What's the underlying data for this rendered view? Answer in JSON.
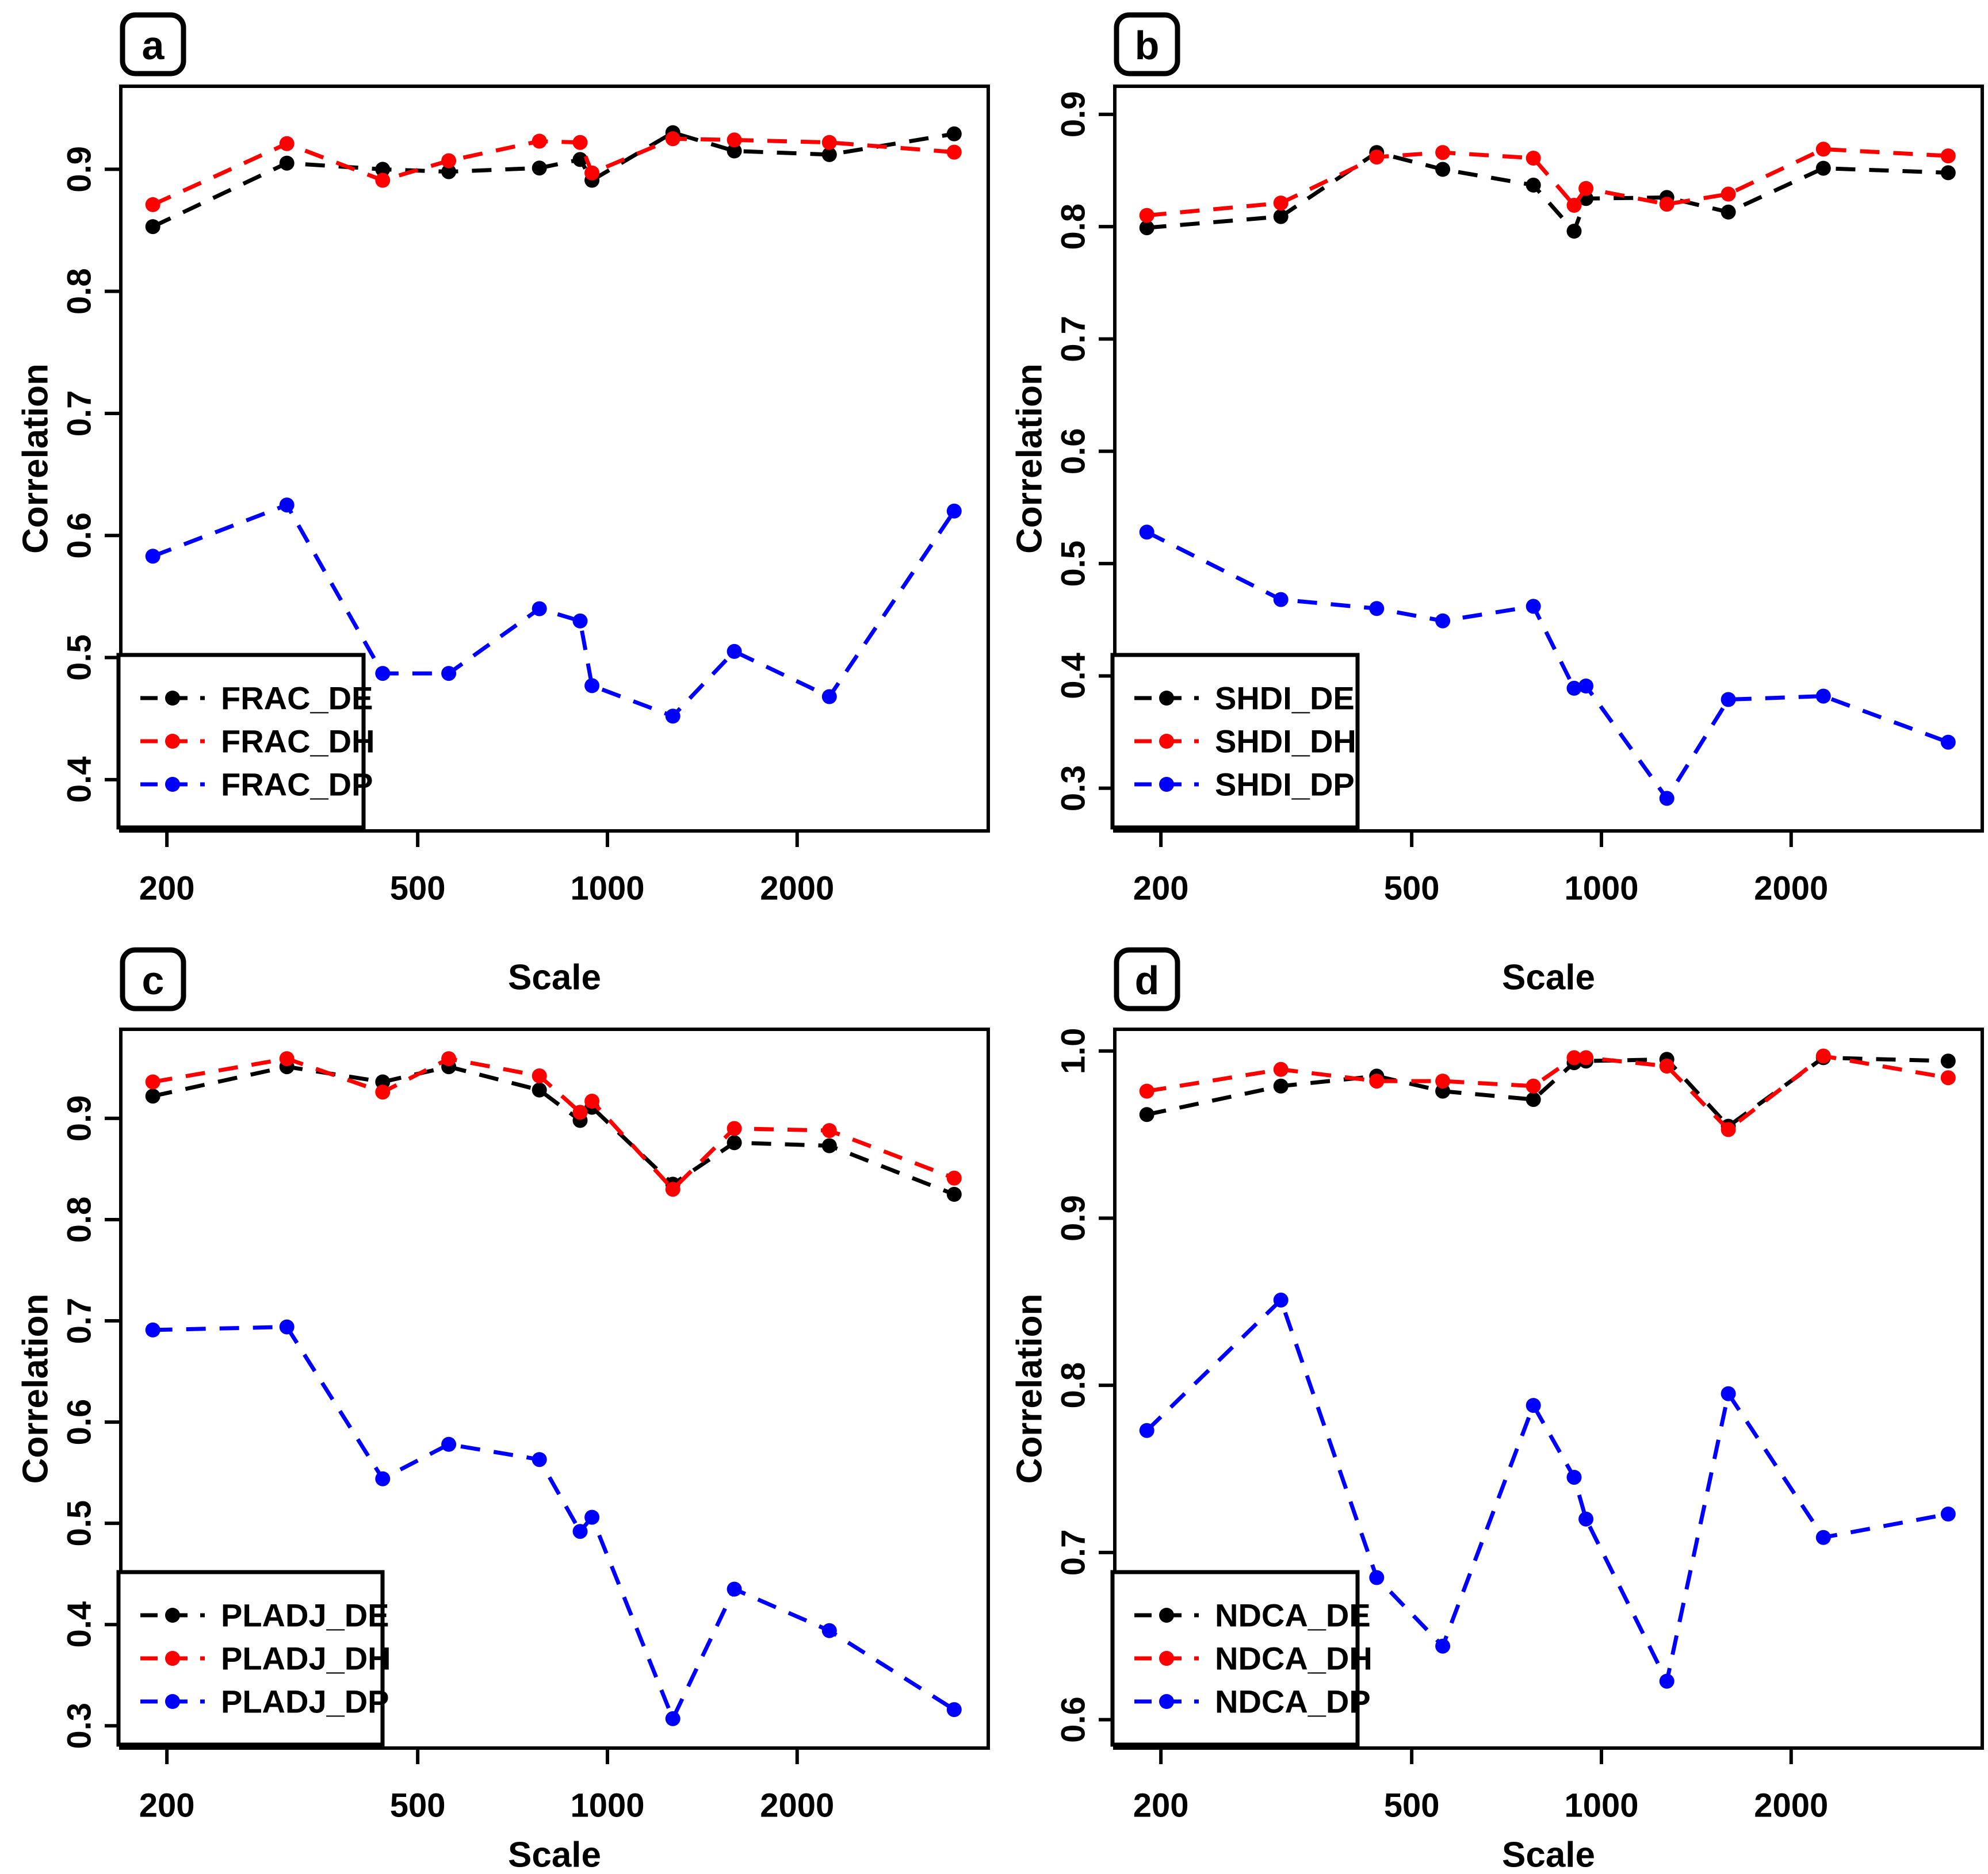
{
  "figure": {
    "background": "#FFFFFF",
    "xlabel": "Scale",
    "ylabel": "Correlation",
    "accent_colors": {
      "DE": "#000000",
      "DH": "#FF0000",
      "DP": "#0000FF"
    }
  },
  "chart_data": [
    {
      "type": "line",
      "panel_label": "a",
      "metric": "FRAC",
      "xlabel": "Scale",
      "ylabel": "Correlation",
      "xscale": "log",
      "xlim": [
        169,
        4020
      ],
      "ylim": [
        0.358,
        0.968
      ],
      "xticks": [
        200,
        500,
        1000,
        2000
      ],
      "yticks": [
        0.4,
        0.5,
        0.6,
        0.7,
        0.8,
        0.9
      ],
      "grid": false,
      "legend_position": "bottom-left",
      "line_style": "dashed",
      "marker": "filled-circle",
      "x": [
        190,
        310,
        440,
        560,
        780,
        905,
        945,
        1270,
        1590,
        2250,
        3550
      ],
      "series": [
        {
          "name": "FRAC_DE",
          "color": "#000000",
          "values": [
            0.853,
            0.905,
            0.9,
            0.898,
            0.901,
            0.908,
            0.891,
            0.93,
            0.915,
            0.912,
            0.929
          ]
        },
        {
          "name": "FRAC_DH",
          "color": "#FF0000",
          "values": [
            0.871,
            0.921,
            0.891,
            0.907,
            0.923,
            0.922,
            0.897,
            0.925,
            0.924,
            0.922,
            0.914
          ]
        },
        {
          "name": "FRAC_DP",
          "color": "#0000FF",
          "values": [
            0.583,
            0.625,
            0.487,
            0.487,
            0.54,
            0.53,
            0.477,
            0.452,
            0.505,
            0.468,
            0.62
          ]
        }
      ]
    },
    {
      "type": "line",
      "panel_label": "b",
      "metric": "SHDI",
      "xlabel": "Scale",
      "ylabel": "Correlation",
      "xscale": "log",
      "xlim": [
        169,
        4020
      ],
      "ylim": [
        0.262,
        0.925
      ],
      "xticks": [
        200,
        500,
        1000,
        2000
      ],
      "yticks": [
        0.3,
        0.4,
        0.5,
        0.6,
        0.7,
        0.8,
        0.9
      ],
      "grid": false,
      "legend_position": "bottom-left",
      "line_style": "dashed",
      "marker": "filled-circle",
      "x": [
        190,
        310,
        440,
        560,
        780,
        905,
        945,
        1270,
        1590,
        2250,
        3550
      ],
      "series": [
        {
          "name": "SHDI_DE",
          "color": "#000000",
          "values": [
            0.799,
            0.809,
            0.866,
            0.851,
            0.837,
            0.796,
            0.825,
            0.826,
            0.813,
            0.852,
            0.848
          ]
        },
        {
          "name": "SHDI_DH",
          "color": "#FF0000",
          "values": [
            0.81,
            0.821,
            0.862,
            0.866,
            0.861,
            0.819,
            0.834,
            0.82,
            0.829,
            0.869,
            0.863
          ]
        },
        {
          "name": "SHDI_DP",
          "color": "#0000FF",
          "values": [
            0.528,
            0.468,
            0.46,
            0.449,
            0.462,
            0.389,
            0.391,
            0.291,
            0.379,
            0.382,
            0.341
          ]
        }
      ]
    },
    {
      "type": "line",
      "panel_label": "c",
      "metric": "PLADJ",
      "xlabel": "Scale",
      "ylabel": "Correlation",
      "xscale": "log",
      "xlim": [
        169,
        4020
      ],
      "ylim": [
        0.278,
        0.988
      ],
      "xticks": [
        200,
        500,
        1000,
        2000
      ],
      "yticks": [
        0.3,
        0.4,
        0.5,
        0.6,
        0.7,
        0.8,
        0.9
      ],
      "grid": false,
      "legend_position": "bottom-left",
      "line_style": "dashed",
      "marker": "filled-circle",
      "x": [
        190,
        310,
        440,
        560,
        780,
        905,
        945,
        1270,
        1590,
        2250,
        3550
      ],
      "series": [
        {
          "name": "PLADJ_DE",
          "color": "#000000",
          "values": [
            0.922,
            0.951,
            0.936,
            0.951,
            0.928,
            0.898,
            0.911,
            0.835,
            0.876,
            0.873,
            0.825
          ]
        },
        {
          "name": "PLADJ_DH",
          "color": "#FF0000",
          "values": [
            0.936,
            0.959,
            0.926,
            0.959,
            0.942,
            0.906,
            0.917,
            0.83,
            0.89,
            0.888,
            0.841
          ]
        },
        {
          "name": "PLADJ_DP",
          "color": "#0000FF",
          "values": [
            0.691,
            0.694,
            0.544,
            0.578,
            0.563,
            0.492,
            0.506,
            0.307,
            0.435,
            0.394,
            0.316
          ]
        }
      ]
    },
    {
      "type": "line",
      "panel_label": "d",
      "metric": "NDCA",
      "xlabel": "Scale",
      "ylabel": "Correlation",
      "xscale": "log",
      "xlim": [
        169,
        4020
      ],
      "ylim": [
        0.583,
        1.013
      ],
      "xticks": [
        200,
        500,
        1000,
        2000
      ],
      "yticks": [
        0.6,
        0.7,
        0.8,
        0.9,
        1.0
      ],
      "grid": false,
      "legend_position": "bottom-left",
      "line_style": "dashed",
      "marker": "filled-circle",
      "x": [
        190,
        310,
        440,
        560,
        780,
        905,
        945,
        1270,
        1590,
        2250,
        3550
      ],
      "series": [
        {
          "name": "NDCA_DE",
          "color": "#000000",
          "values": [
            0.962,
            0.979,
            0.985,
            0.976,
            0.971,
            0.993,
            0.994,
            0.995,
            0.955,
            0.996,
            0.994
          ]
        },
        {
          "name": "NDCA_DH",
          "color": "#FF0000",
          "values": [
            0.976,
            0.989,
            0.982,
            0.982,
            0.979,
            0.996,
            0.996,
            0.991,
            0.953,
            0.997,
            0.984
          ]
        },
        {
          "name": "NDCA_DP",
          "color": "#0000FF",
          "values": [
            0.773,
            0.851,
            0.685,
            0.644,
            0.788,
            0.745,
            0.72,
            0.623,
            0.795,
            0.709,
            0.723
          ]
        }
      ]
    }
  ]
}
